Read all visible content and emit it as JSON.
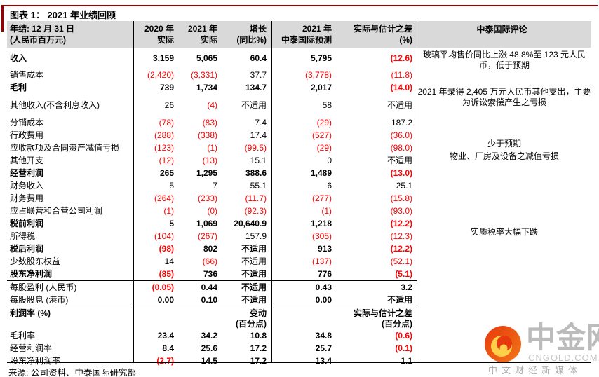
{
  "figure": {
    "title": "图表 1： 2021 年业绩回顾",
    "source": "来源: 公司资料、中泰国际研究部"
  },
  "table": {
    "header": {
      "label_line1": "年结: 12 月 31 日",
      "label_line2": "(人民币百万元)",
      "columns": [
        {
          "line1": "2020 年",
          "line2": "实际"
        },
        {
          "line1": "2021 年",
          "line2": "实际"
        },
        {
          "line1": "增长",
          "line2": "(同比%)"
        },
        {
          "line1": "2021 年",
          "line2": "中泰国际预测"
        },
        {
          "line1": "实际与估计之差",
          "line2": "(%)"
        }
      ],
      "comment_column": "中泰国际评论"
    },
    "rows": [
      {
        "label": "收入",
        "bold": true,
        "tall": true,
        "values": [
          "3,159",
          "5,065",
          "60.4",
          "5,795",
          "(12.6)"
        ]
      },
      {
        "label": "销售成本",
        "values": [
          "(2,420)",
          "(3,331)",
          "37.7",
          "(3,778)",
          "(11.8)"
        ]
      },
      {
        "label": "毛利",
        "bold": true,
        "values": [
          "739",
          "1,734",
          "134.7",
          "2,017",
          "(14.0)"
        ]
      },
      {
        "label": "其他收入(不含利息收入)",
        "gap": true,
        "values": [
          "26",
          "(4)",
          "不适用",
          "58",
          "不适用"
        ]
      },
      {
        "label": "分销成本",
        "gap": true,
        "values": [
          "(78)",
          "(83)",
          "7.4",
          "(29)",
          "187.2"
        ]
      },
      {
        "label": "行政费用",
        "values": [
          "(288)",
          "(338)",
          "17.4",
          "(527)",
          "(36.0)"
        ]
      },
      {
        "label": "应收款项及合同资产减值亏损",
        "values": [
          "(123)",
          "(1)",
          "(99.5)",
          "(29)",
          "(98.0)"
        ]
      },
      {
        "label": "其他开支",
        "values": [
          "(12)",
          "(13)",
          "15.1",
          "0",
          "不适用"
        ]
      },
      {
        "label": "经营利润",
        "bold": true,
        "values": [
          "265",
          "1,295",
          "388.6",
          "1,489",
          "(13.0)"
        ]
      },
      {
        "label": "财务收入",
        "values": [
          "5",
          "7",
          "55.1",
          "6",
          "25.1"
        ]
      },
      {
        "label": "财务费用",
        "values": [
          "(264)",
          "(233)",
          "(11.7)",
          "(277)",
          "(15.8)"
        ]
      },
      {
        "label": "应占联营和合营公司利润",
        "values": [
          "(1)",
          "(0)",
          "(92.3)",
          "(1)",
          "(93.0)"
        ]
      },
      {
        "label": "税前利润",
        "bold": true,
        "values": [
          "5",
          "1,069",
          "20,640.9",
          "1,218",
          "(12.2)"
        ]
      },
      {
        "label": "所得税",
        "values": [
          "(104)",
          "(267)",
          "157.9",
          "(305)",
          "(12.3)"
        ]
      },
      {
        "label": "税后利润",
        "bold": true,
        "values": [
          "(98)",
          "802",
          "不适用",
          "913",
          "(12.2)"
        ]
      },
      {
        "label": "少数股东权益",
        "values": [
          "14",
          "(66)",
          "不适用",
          "(137)",
          "(52.1)"
        ]
      },
      {
        "label": "股东净利润",
        "bold": true,
        "values": [
          "(85)",
          "736",
          "不适用",
          "776",
          "(5.1)"
        ]
      }
    ],
    "eps_rows": [
      {
        "label": "每股盈利 (人民币)",
        "vbold": true,
        "values": [
          "(0.05)",
          "0.44",
          "不适用",
          "0.43",
          "3.2"
        ]
      },
      {
        "label": "每股股息 (港币)",
        "vbold": true,
        "values": [
          "0.00",
          "0.10",
          "不适用",
          "0.00",
          "不适用"
        ]
      }
    ],
    "ratio_header": {
      "label": "利润率 (%)",
      "growth_line1": "变动",
      "growth_line2": "(百分点)",
      "diff_line1": "实际与估计之差",
      "diff_line2": "(百分点)"
    },
    "ratio_rows": [
      {
        "label": "毛利率",
        "vbold": true,
        "values": [
          "23.4",
          "34.2",
          "10.8",
          "34.8",
          "(0.6)"
        ]
      },
      {
        "label": "经营利润率",
        "vbold": true,
        "values": [
          "8.4",
          "25.6",
          "17.2",
          "25.7",
          "(0.1)"
        ]
      },
      {
        "label": "股东净利润率",
        "vbold": true,
        "values": [
          "(2.7)",
          "14.5",
          "17.2",
          "13.4",
          "1.1"
        ]
      }
    ],
    "comments": [
      {
        "text": "玻璃平均售价同比上涨 48.8%至 123 元人民币，低于预期"
      },
      {
        "text": "2021 年录得 2,405 万元人民币其他支出，主要为诉讼索偿产生之亏损"
      },
      {
        "text": "少于预期"
      },
      {
        "text": "物业、厂房及设备之减值亏损"
      },
      {
        "text": "实质税率大幅下跌"
      }
    ]
  },
  "logo": {
    "name": "中金网",
    "domain": "CNGOLD.COM.CN",
    "tagline": "中文财经新媒体"
  },
  "colors": {
    "accent_line": "#990000",
    "header_bg": "#D9D9D9",
    "negative": "#FF0000",
    "logo_red": "#E8380D",
    "logo_orange": "#F07818",
    "logo_gold": "#FFCF4A",
    "logo_gray": "#BBBBBB"
  }
}
